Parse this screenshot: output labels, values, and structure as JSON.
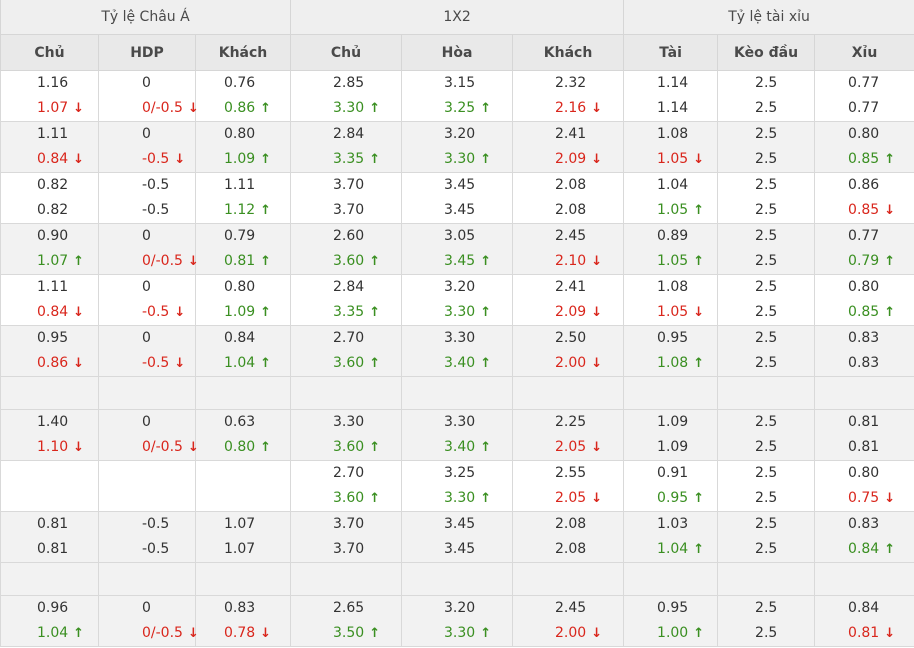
{
  "header": {
    "groups": [
      "Tỷ lệ Châu Á",
      "1X2",
      "Tỷ lệ tài xỉu"
    ],
    "columns": [
      "Chủ",
      "HDP",
      "Khách",
      "Chủ",
      "Hòa",
      "Khách",
      "Tài",
      "Kèo đầu",
      "Xỉu"
    ]
  },
  "rows": [
    {
      "type": "data",
      "cells": [
        [
          "1.16",
          ""
        ],
        [
          "1.07",
          "down"
        ]
      ],
      "hdp": [
        [
          "0",
          ""
        ],
        [
          "0/-0.5",
          "down"
        ]
      ],
      "khach": [
        [
          "0.76",
          ""
        ],
        [
          "0.86",
          "up"
        ]
      ],
      "x_chu": [
        [
          "2.85",
          ""
        ],
        [
          "3.30",
          "up"
        ]
      ],
      "x_hoa": [
        [
          "3.15",
          ""
        ],
        [
          "3.25",
          "up"
        ]
      ],
      "x_khach": [
        [
          "2.32",
          ""
        ],
        [
          "2.16",
          "down"
        ]
      ],
      "tai": [
        [
          "1.14",
          ""
        ],
        [
          "1.14",
          ""
        ]
      ],
      "keo": [
        [
          "2.5",
          ""
        ],
        [
          "2.5",
          ""
        ]
      ],
      "xiu": [
        [
          "0.77",
          ""
        ],
        [
          "0.77",
          ""
        ]
      ]
    },
    {
      "type": "data",
      "cells": [
        [
          "1.11",
          ""
        ],
        [
          "0.84",
          "down"
        ]
      ],
      "hdp": [
        [
          "0",
          ""
        ],
        [
          "-0.5",
          "down"
        ]
      ],
      "khach": [
        [
          "0.80",
          ""
        ],
        [
          "1.09",
          "up"
        ]
      ],
      "x_chu": [
        [
          "2.84",
          ""
        ],
        [
          "3.35",
          "up"
        ]
      ],
      "x_hoa": [
        [
          "3.20",
          ""
        ],
        [
          "3.30",
          "up"
        ]
      ],
      "x_khach": [
        [
          "2.41",
          ""
        ],
        [
          "2.09",
          "down"
        ]
      ],
      "tai": [
        [
          "1.08",
          ""
        ],
        [
          "1.05",
          "down"
        ]
      ],
      "keo": [
        [
          "2.5",
          ""
        ],
        [
          "2.5",
          ""
        ]
      ],
      "xiu": [
        [
          "0.80",
          ""
        ],
        [
          "0.85",
          "up"
        ]
      ]
    },
    {
      "type": "data",
      "cells": [
        [
          "0.82",
          ""
        ],
        [
          "0.82",
          ""
        ]
      ],
      "hdp": [
        [
          "-0.5",
          ""
        ],
        [
          "-0.5",
          ""
        ]
      ],
      "khach": [
        [
          "1.11",
          ""
        ],
        [
          "1.12",
          "up"
        ]
      ],
      "x_chu": [
        [
          "3.70",
          ""
        ],
        [
          "3.70",
          ""
        ]
      ],
      "x_hoa": [
        [
          "3.45",
          ""
        ],
        [
          "3.45",
          ""
        ]
      ],
      "x_khach": [
        [
          "2.08",
          ""
        ],
        [
          "2.08",
          ""
        ]
      ],
      "tai": [
        [
          "1.04",
          ""
        ],
        [
          "1.05",
          "up"
        ]
      ],
      "keo": [
        [
          "2.5",
          ""
        ],
        [
          "2.5",
          ""
        ]
      ],
      "xiu": [
        [
          "0.86",
          ""
        ],
        [
          "0.85",
          "down"
        ]
      ]
    },
    {
      "type": "data",
      "cells": [
        [
          "0.90",
          ""
        ],
        [
          "1.07",
          "up"
        ]
      ],
      "hdp": [
        [
          "0",
          ""
        ],
        [
          "0/-0.5",
          "down"
        ]
      ],
      "khach": [
        [
          "0.79",
          ""
        ],
        [
          "0.81",
          "up"
        ]
      ],
      "x_chu": [
        [
          "2.60",
          ""
        ],
        [
          "3.60",
          "up"
        ]
      ],
      "x_hoa": [
        [
          "3.05",
          ""
        ],
        [
          "3.45",
          "up"
        ]
      ],
      "x_khach": [
        [
          "2.45",
          ""
        ],
        [
          "2.10",
          "down"
        ]
      ],
      "tai": [
        [
          "0.89",
          ""
        ],
        [
          "1.05",
          "up"
        ]
      ],
      "keo": [
        [
          "2.5",
          ""
        ],
        [
          "2.5",
          ""
        ]
      ],
      "xiu": [
        [
          "0.77",
          ""
        ],
        [
          "0.79",
          "up"
        ]
      ]
    },
    {
      "type": "data",
      "cells": [
        [
          "1.11",
          ""
        ],
        [
          "0.84",
          "down"
        ]
      ],
      "hdp": [
        [
          "0",
          ""
        ],
        [
          "-0.5",
          "down"
        ]
      ],
      "khach": [
        [
          "0.80",
          ""
        ],
        [
          "1.09",
          "up"
        ]
      ],
      "x_chu": [
        [
          "2.84",
          ""
        ],
        [
          "3.35",
          "up"
        ]
      ],
      "x_hoa": [
        [
          "3.20",
          ""
        ],
        [
          "3.30",
          "up"
        ]
      ],
      "x_khach": [
        [
          "2.41",
          ""
        ],
        [
          "2.09",
          "down"
        ]
      ],
      "tai": [
        [
          "1.08",
          ""
        ],
        [
          "1.05",
          "down"
        ]
      ],
      "keo": [
        [
          "2.5",
          ""
        ],
        [
          "2.5",
          ""
        ]
      ],
      "xiu": [
        [
          "0.80",
          ""
        ],
        [
          "0.85",
          "up"
        ]
      ]
    },
    {
      "type": "data",
      "cells": [
        [
          "0.95",
          ""
        ],
        [
          "0.86",
          "down"
        ]
      ],
      "hdp": [
        [
          "0",
          ""
        ],
        [
          "-0.5",
          "down"
        ]
      ],
      "khach": [
        [
          "0.84",
          ""
        ],
        [
          "1.04",
          "up"
        ]
      ],
      "x_chu": [
        [
          "2.70",
          ""
        ],
        [
          "3.60",
          "up"
        ]
      ],
      "x_hoa": [
        [
          "3.30",
          ""
        ],
        [
          "3.40",
          "up"
        ]
      ],
      "x_khach": [
        [
          "2.50",
          ""
        ],
        [
          "2.00",
          "down"
        ]
      ],
      "tai": [
        [
          "0.95",
          ""
        ],
        [
          "1.08",
          "up"
        ]
      ],
      "keo": [
        [
          "2.5",
          ""
        ],
        [
          "2.5",
          ""
        ]
      ],
      "xiu": [
        [
          "0.83",
          ""
        ],
        [
          "0.83",
          ""
        ]
      ]
    },
    {
      "type": "spacer"
    },
    {
      "type": "data",
      "cells": [
        [
          "1.40",
          ""
        ],
        [
          "1.10",
          "down"
        ]
      ],
      "hdp": [
        [
          "0",
          ""
        ],
        [
          "0/-0.5",
          "down"
        ]
      ],
      "khach": [
        [
          "0.63",
          ""
        ],
        [
          "0.80",
          "up"
        ]
      ],
      "x_chu": [
        [
          "3.30",
          ""
        ],
        [
          "3.60",
          "up"
        ]
      ],
      "x_hoa": [
        [
          "3.30",
          ""
        ],
        [
          "3.40",
          "up"
        ]
      ],
      "x_khach": [
        [
          "2.25",
          ""
        ],
        [
          "2.05",
          "down"
        ]
      ],
      "tai": [
        [
          "1.09",
          ""
        ],
        [
          "1.09",
          ""
        ]
      ],
      "keo": [
        [
          "2.5",
          ""
        ],
        [
          "2.5",
          ""
        ]
      ],
      "xiu": [
        [
          "0.81",
          ""
        ],
        [
          "0.81",
          ""
        ]
      ]
    },
    {
      "type": "data",
      "cells": [
        [
          "",
          ""
        ],
        [
          "",
          ""
        ]
      ],
      "hdp": [
        [
          "",
          ""
        ],
        [
          "",
          ""
        ]
      ],
      "khach": [
        [
          "",
          ""
        ],
        [
          "",
          ""
        ]
      ],
      "x_chu": [
        [
          "2.70",
          ""
        ],
        [
          "3.60",
          "up"
        ]
      ],
      "x_hoa": [
        [
          "3.25",
          ""
        ],
        [
          "3.30",
          "up"
        ]
      ],
      "x_khach": [
        [
          "2.55",
          ""
        ],
        [
          "2.05",
          "down"
        ]
      ],
      "tai": [
        [
          "0.91",
          ""
        ],
        [
          "0.95",
          "up"
        ]
      ],
      "keo": [
        [
          "2.5",
          ""
        ],
        [
          "2.5",
          ""
        ]
      ],
      "xiu": [
        [
          "0.80",
          ""
        ],
        [
          "0.75",
          "down"
        ]
      ]
    },
    {
      "type": "data",
      "cells": [
        [
          "0.81",
          ""
        ],
        [
          "0.81",
          ""
        ]
      ],
      "hdp": [
        [
          "-0.5",
          ""
        ],
        [
          "-0.5",
          ""
        ]
      ],
      "khach": [
        [
          "1.07",
          ""
        ],
        [
          "1.07",
          ""
        ]
      ],
      "x_chu": [
        [
          "3.70",
          ""
        ],
        [
          "3.70",
          ""
        ]
      ],
      "x_hoa": [
        [
          "3.45",
          ""
        ],
        [
          "3.45",
          ""
        ]
      ],
      "x_khach": [
        [
          "2.08",
          ""
        ],
        [
          "2.08",
          ""
        ]
      ],
      "tai": [
        [
          "1.03",
          ""
        ],
        [
          "1.04",
          "up"
        ]
      ],
      "keo": [
        [
          "2.5",
          ""
        ],
        [
          "2.5",
          ""
        ]
      ],
      "xiu": [
        [
          "0.83",
          ""
        ],
        [
          "0.84",
          "up"
        ]
      ]
    },
    {
      "type": "spacer"
    },
    {
      "type": "data",
      "cells": [
        [
          "0.96",
          ""
        ],
        [
          "1.04",
          "up"
        ]
      ],
      "hdp": [
        [
          "0",
          ""
        ],
        [
          "0/-0.5",
          "down"
        ]
      ],
      "khach": [
        [
          "0.83",
          ""
        ],
        [
          "0.78",
          "down"
        ]
      ],
      "x_chu": [
        [
          "2.65",
          ""
        ],
        [
          "3.50",
          "up"
        ]
      ],
      "x_hoa": [
        [
          "3.20",
          ""
        ],
        [
          "3.30",
          "up"
        ]
      ],
      "x_khach": [
        [
          "2.45",
          ""
        ],
        [
          "2.00",
          "down"
        ]
      ],
      "tai": [
        [
          "0.95",
          ""
        ],
        [
          "1.00",
          "up"
        ]
      ],
      "keo": [
        [
          "2.5",
          ""
        ],
        [
          "2.5",
          ""
        ]
      ],
      "xiu": [
        [
          "0.84",
          ""
        ],
        [
          "0.81",
          "down"
        ]
      ]
    }
  ],
  "colors": {
    "up": "#3a8f21",
    "down": "#d9261c",
    "header_bg": "#e9e9e9",
    "row_alt": "#f2f2f2"
  },
  "icons": {
    "up": "arrow-up-icon",
    "down": "arrow-down-icon"
  }
}
